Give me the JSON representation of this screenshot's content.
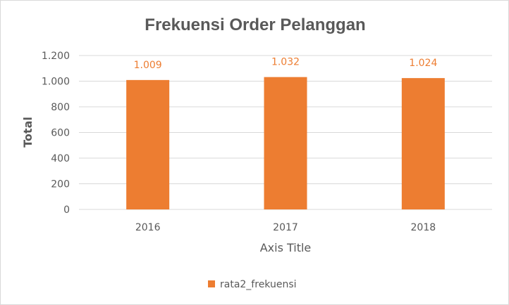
{
  "chart_data": {
    "type": "bar",
    "title": "Frekuensi Order Pelanggan",
    "xlabel": "Axis Title",
    "ylabel": "Total",
    "categories": [
      "2016",
      "2017",
      "2018"
    ],
    "series": [
      {
        "name": "rata2_frekuensi",
        "values": [
          1009,
          1032,
          1024
        ],
        "data_labels": [
          "1.009",
          "1.032",
          "1.024"
        ],
        "color": "#ED7D31"
      }
    ],
    "ylim": [
      0,
      1200
    ],
    "yticks": [
      0,
      200,
      400,
      600,
      800,
      1000,
      1200
    ],
    "ytick_labels": [
      "0",
      "200",
      "400",
      "600",
      "800",
      "1.000",
      "1.200"
    ],
    "grid": true,
    "legend": "bottom",
    "gridline_color": "#d9d9d9",
    "label_color": "#595959"
  }
}
